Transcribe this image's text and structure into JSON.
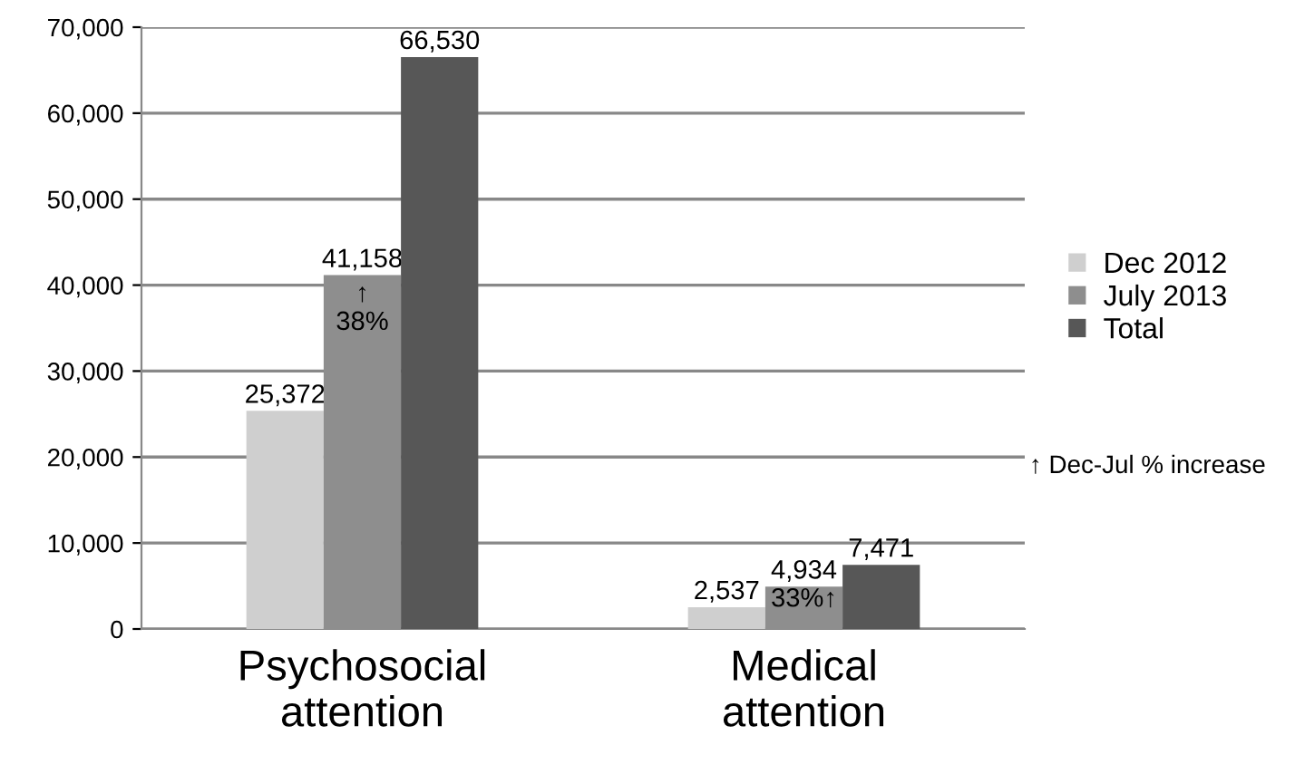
{
  "chart_data": {
    "type": "bar",
    "categories": [
      "Psychosocial\nattention",
      "Medical\nattention"
    ],
    "series": [
      {
        "name": "Dec 2012",
        "color": "#cfcfcf",
        "values": [
          25372,
          2537
        ]
      },
      {
        "name": "July 2013",
        "color": "#8e8e8e",
        "values": [
          41158,
          4934
        ]
      },
      {
        "name": "Total",
        "color": "#575757",
        "values": [
          66530,
          7471
        ]
      }
    ],
    "ylim": [
      0,
      70000
    ],
    "yticks": [
      {
        "value": 0,
        "label": "0"
      },
      {
        "value": 10000,
        "label": "10,000"
      },
      {
        "value": 20000,
        "label": "20,000"
      },
      {
        "value": 30000,
        "label": "30,000"
      },
      {
        "value": 40000,
        "label": "40,000"
      },
      {
        "value": 50000,
        "label": "50,000"
      },
      {
        "value": 60000,
        "label": "60,000"
      },
      {
        "value": 70000,
        "label": "70,000"
      }
    ],
    "value_labels": [
      [
        "25,372",
        "2,537"
      ],
      [
        "41,158",
        "4,934"
      ],
      [
        "66,530",
        "7,471"
      ]
    ],
    "grid": "y",
    "legend": "right",
    "annotations": [
      "↑\n38%",
      "33%↑",
      "↑ Dec-Jul % increase"
    ]
  }
}
